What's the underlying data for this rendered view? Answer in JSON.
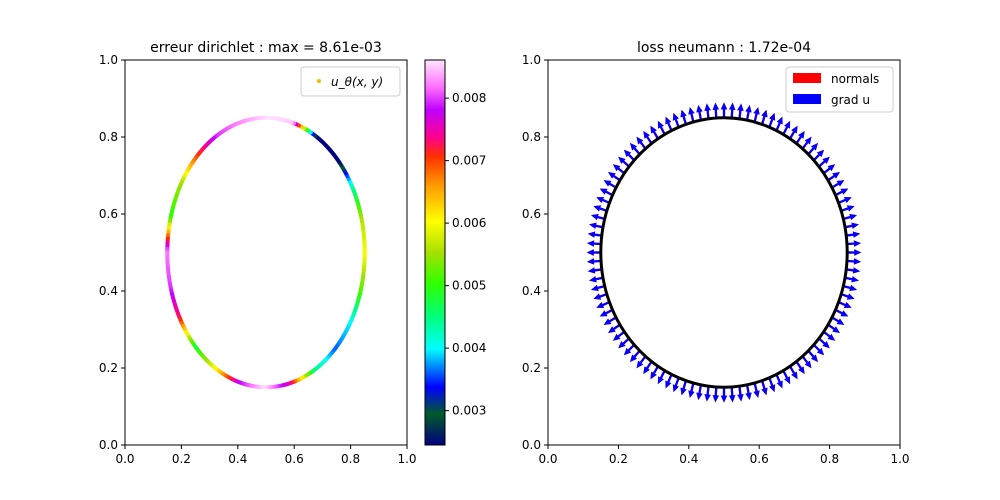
{
  "chart_data": [
    {
      "type": "scatter",
      "title": "erreur dirichlet : max = 8.61e-03",
      "xlim": [
        0,
        1
      ],
      "ylim": [
        0,
        1
      ],
      "xticks": [
        "0.0",
        "0.2",
        "0.4",
        "0.6",
        "0.8",
        "1.0"
      ],
      "yticks": [
        "0.0",
        "0.2",
        "0.4",
        "0.6",
        "0.8",
        "1.0"
      ],
      "grid": false,
      "legend": {
        "placement": "top-right",
        "entries": [
          "u_θ(x, y)"
        ]
      },
      "legend_marker_color": "#f2b705",
      "curve": {
        "shape": "circle",
        "center": [
          0.5,
          0.5
        ],
        "radius": 0.35
      },
      "error_profile": {
        "theta_deg": [
          0,
          15,
          30,
          45,
          60,
          75,
          90,
          105,
          120,
          135,
          150,
          165,
          180,
          195,
          210,
          225,
          240,
          255,
          270,
          285,
          300,
          315,
          330,
          345,
          360
        ],
        "error": [
          0.006,
          0.0056,
          0.0043,
          0.0022,
          0.0025,
          0.0085,
          0.0086,
          0.0083,
          0.008,
          0.007,
          0.0055,
          0.005,
          0.0082,
          0.008,
          0.0072,
          0.0048,
          0.006,
          0.0078,
          0.0086,
          0.0075,
          0.0045,
          0.0036,
          0.004,
          0.0052,
          0.006
        ]
      },
      "colorbar": {
        "colormap": "gist_ncar",
        "min": 0.00245,
        "max": 0.00861,
        "ticks": [
          0.003,
          0.004,
          0.005,
          0.006,
          0.007,
          0.008
        ],
        "tick_labels": [
          "0.003",
          "0.004",
          "0.005",
          "0.006",
          "0.007",
          "0.008"
        ]
      }
    },
    {
      "type": "quiver",
      "title": "loss neumann : 1.72e-04",
      "xlim": [
        0,
        1
      ],
      "ylim": [
        0,
        1
      ],
      "xticks": [
        "0.0",
        "0.2",
        "0.4",
        "0.6",
        "0.8",
        "1.0"
      ],
      "yticks": [
        "0.0",
        "0.2",
        "0.4",
        "0.6",
        "0.8",
        "1.0"
      ],
      "grid": false,
      "legend": {
        "placement": "top-right"
      },
      "series": [
        {
          "name": "normals",
          "color": "#ff0000"
        },
        {
          "name": "grad u",
          "color": "#0000ff"
        }
      ],
      "boundary": {
        "shape": "circle",
        "center": [
          0.5,
          0.5
        ],
        "radius": 0.35,
        "color": "#000000"
      },
      "n_arrows": 100,
      "arrow_length": 0.04
    }
  ]
}
